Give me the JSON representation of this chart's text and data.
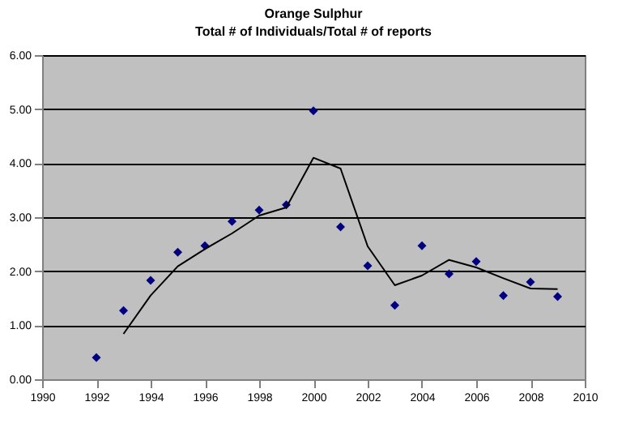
{
  "chart_data": {
    "type": "scatter",
    "title": "Orange Sulphur",
    "subtitle": "Total # of Individuals/Total # of reports",
    "x": [
      1992,
      1993,
      1994,
      1995,
      1996,
      1997,
      1998,
      1999,
      2000,
      2001,
      2002,
      2003,
      2004,
      2005,
      2006,
      2007,
      2008,
      2009
    ],
    "series": [
      {
        "color": "#000080",
        "marker": "diamond",
        "values": [
          0.4,
          1.27,
          1.83,
          2.35,
          2.47,
          2.92,
          3.13,
          3.23,
          4.97,
          2.82,
          2.1,
          1.37,
          2.47,
          1.95,
          2.18,
          1.55,
          1.8,
          1.53
        ]
      },
      {
        "type": "line",
        "color": "#000000",
        "marker": "none",
        "line_style": "solid",
        "x": [
          1993,
          1994,
          1995,
          1996,
          1997,
          1998,
          1999,
          2000,
          2001,
          2002,
          2003,
          2004,
          2005,
          2006,
          2007,
          2008,
          2009
        ],
        "values": [
          0.84,
          1.55,
          2.09,
          2.41,
          2.7,
          3.03,
          3.18,
          4.1,
          3.9,
          2.46,
          1.74,
          1.92,
          2.21,
          2.07,
          1.87,
          1.68,
          1.67
        ]
      }
    ],
    "xlim": [
      1990,
      2010
    ],
    "xticks": [
      1990,
      1992,
      1994,
      1996,
      1998,
      2000,
      2002,
      2004,
      2006,
      2008,
      2010
    ],
    "ylim": [
      0,
      6
    ],
    "yticks": [
      {
        "value": 0,
        "label": "0.00"
      },
      {
        "value": 1,
        "label": "1.00"
      },
      {
        "value": 2,
        "label": "2.00"
      },
      {
        "value": 3,
        "label": "3.00"
      },
      {
        "value": 4,
        "label": "4.00"
      },
      {
        "value": 5,
        "label": "5.00"
      },
      {
        "value": 6,
        "label": "6.00"
      }
    ],
    "grid": "y"
  }
}
